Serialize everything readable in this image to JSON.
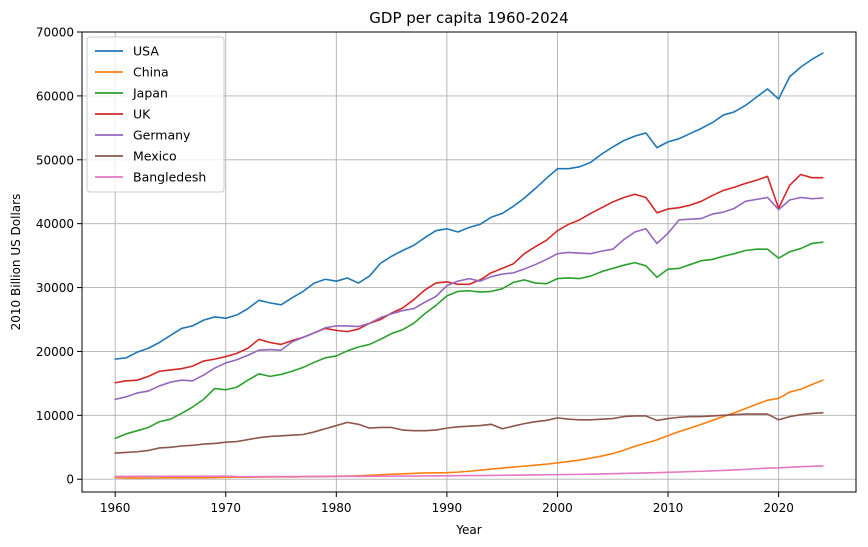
{
  "chart_data": {
    "type": "line",
    "title": "GDP per capita 1960-2024",
    "xlabel": "Year",
    "ylabel": "2010 Billion US Dollars",
    "xlim": [
      1957,
      2027
    ],
    "ylim": [
      -2000,
      70000
    ],
    "xticks": [
      1960,
      1970,
      1980,
      1990,
      2000,
      2010,
      2020
    ],
    "yticks": [
      0,
      10000,
      20000,
      30000,
      40000,
      50000,
      60000,
      70000
    ],
    "grid": true,
    "legend_position": "top-left",
    "x": [
      1960,
      1961,
      1962,
      1963,
      1964,
      1965,
      1966,
      1967,
      1968,
      1969,
      1970,
      1971,
      1972,
      1973,
      1974,
      1975,
      1976,
      1977,
      1978,
      1979,
      1980,
      1981,
      1982,
      1983,
      1984,
      1985,
      1986,
      1987,
      1988,
      1989,
      1990,
      1991,
      1992,
      1993,
      1994,
      1995,
      1996,
      1997,
      1998,
      1999,
      2000,
      2001,
      2002,
      2003,
      2004,
      2005,
      2006,
      2007,
      2008,
      2009,
      2010,
      2011,
      2012,
      2013,
      2014,
      2015,
      2016,
      2017,
      2018,
      2019,
      2020,
      2021,
      2022,
      2023,
      2024
    ],
    "series": [
      {
        "name": "USA",
        "color": "#1f77b4",
        "values": [
          18800,
          19000,
          19900,
          20500,
          21400,
          22500,
          23600,
          24000,
          24900,
          25400,
          25200,
          25700,
          26700,
          28000,
          27600,
          27300,
          28400,
          29400,
          30700,
          31300,
          31000,
          31500,
          30700,
          31800,
          33800,
          34900,
          35800,
          36600,
          37800,
          38900,
          39200,
          38700,
          39400,
          39900,
          41000,
          41600,
          42700,
          44000,
          45500,
          47100,
          48600,
          48600,
          48900,
          49600,
          50900,
          52000,
          53000,
          53700,
          54200,
          51900,
          52800,
          53300,
          54100,
          54900,
          55800,
          57000,
          57500,
          58500,
          59800,
          61100,
          59500,
          63000,
          64500,
          65700,
          66700
        ]
      },
      {
        "name": "China",
        "color": "#ff7f0e",
        "values": [
          250,
          190,
          175,
          190,
          210,
          240,
          260,
          240,
          230,
          260,
          300,
          310,
          320,
          340,
          350,
          370,
          360,
          390,
          420,
          440,
          480,
          500,
          540,
          610,
          700,
          780,
          850,
          910,
          990,
          1010,
          1030,
          1110,
          1250,
          1420,
          1590,
          1750,
          1900,
          2050,
          2200,
          2350,
          2560,
          2760,
          3000,
          3300,
          3620,
          4020,
          4530,
          5160,
          5650,
          6160,
          6820,
          7450,
          8000,
          8590,
          9200,
          9790,
          10410,
          11050,
          11730,
          12370,
          12640,
          13640,
          14080,
          14800,
          15500
        ]
      },
      {
        "name": "Japan",
        "color": "#2ca02c",
        "values": [
          6400,
          7100,
          7600,
          8100,
          9000,
          9400,
          10300,
          11300,
          12500,
          14200,
          14000,
          14400,
          15500,
          16500,
          16100,
          16400,
          16900,
          17500,
          18300,
          19000,
          19300,
          20100,
          20700,
          21100,
          21900,
          22800,
          23400,
          24400,
          25900,
          27200,
          28700,
          29400,
          29500,
          29300,
          29400,
          29800,
          30800,
          31200,
          30700,
          30600,
          31400,
          31500,
          31400,
          31800,
          32500,
          33000,
          33500,
          33900,
          33400,
          31600,
          32900,
          33000,
          33600,
          34200,
          34400,
          34900,
          35300,
          35800,
          36000,
          36000,
          34600,
          35600,
          36100,
          36900,
          37100
        ]
      },
      {
        "name": "UK",
        "color": "#d62728",
        "values": [
          15100,
          15400,
          15500,
          16100,
          16900,
          17100,
          17300,
          17700,
          18500,
          18800,
          19200,
          19700,
          20500,
          21900,
          21400,
          21100,
          21700,
          22200,
          22900,
          23600,
          23300,
          23100,
          23500,
          24400,
          25000,
          26000,
          26800,
          28100,
          29600,
          30700,
          30900,
          30500,
          30500,
          31200,
          32300,
          33000,
          33700,
          35300,
          36400,
          37400,
          38900,
          39900,
          40600,
          41600,
          42500,
          43400,
          44100,
          44600,
          44100,
          41700,
          42300,
          42500,
          42900,
          43500,
          44400,
          45200,
          45700,
          46300,
          46800,
          47400,
          42400,
          46000,
          47700,
          47200,
          47200
        ]
      },
      {
        "name": "Germany",
        "color": "#9467bd",
        "values": [
          12500,
          12900,
          13500,
          13800,
          14600,
          15200,
          15500,
          15400,
          16300,
          17400,
          18200,
          18700,
          19400,
          20200,
          20300,
          20200,
          21500,
          22200,
          22900,
          23700,
          24000,
          24000,
          23900,
          24400,
          25300,
          25900,
          26400,
          26700,
          27700,
          28600,
          30300,
          31000,
          31400,
          31000,
          31700,
          32100,
          32300,
          32900,
          33600,
          34400,
          35300,
          35500,
          35400,
          35300,
          35700,
          36000,
          37500,
          38700,
          39200,
          36900,
          38500,
          40600,
          40700,
          40800,
          41500,
          41800,
          42400,
          43500,
          43800,
          44100,
          42200,
          43700,
          44100,
          43900,
          44000
        ]
      },
      {
        "name": "Mexico",
        "color": "#8c564b",
        "values": [
          4100,
          4200,
          4300,
          4500,
          4900,
          5000,
          5200,
          5300,
          5500,
          5600,
          5800,
          5900,
          6200,
          6500,
          6700,
          6800,
          6900,
          7000,
          7400,
          7900,
          8400,
          8900,
          8600,
          8000,
          8100,
          8100,
          7700,
          7600,
          7600,
          7700,
          8000,
          8200,
          8300,
          8400,
          8600,
          7900,
          8300,
          8700,
          9000,
          9200,
          9600,
          9400,
          9300,
          9300,
          9400,
          9500,
          9800,
          9900,
          9900,
          9200,
          9500,
          9700,
          9800,
          9800,
          9900,
          10000,
          10100,
          10200,
          10200,
          10200,
          9300,
          9800,
          10100,
          10300,
          10400
        ]
      },
      {
        "name": "Bangledesh",
        "color": "#e377c2",
        "values": [
          430,
          440,
          450,
          450,
          460,
          460,
          470,
          460,
          470,
          470,
          480,
          420,
          400,
          400,
          410,
          410,
          410,
          420,
          430,
          440,
          440,
          450,
          450,
          460,
          470,
          480,
          490,
          500,
          510,
          520,
          540,
          550,
          570,
          580,
          590,
          610,
          630,
          650,
          670,
          700,
          720,
          740,
          760,
          790,
          830,
          870,
          910,
          950,
          990,
          1030,
          1080,
          1130,
          1190,
          1250,
          1310,
          1380,
          1460,
          1540,
          1640,
          1750,
          1790,
          1870,
          1970,
          2020,
          2080
        ]
      }
    ]
  }
}
